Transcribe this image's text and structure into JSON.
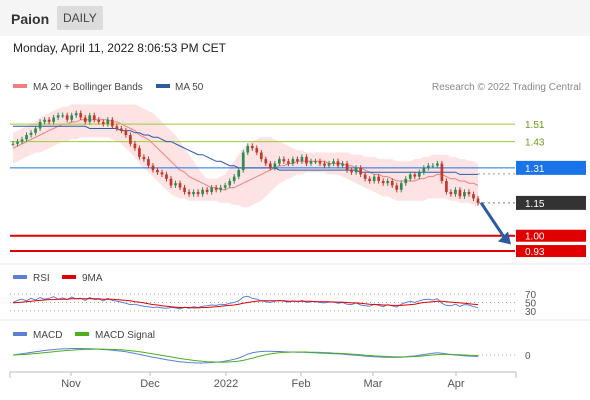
{
  "header": {
    "symbol": "Paion",
    "period": "DAILY",
    "datetime": "Monday, April 11, 2022 8:06:53 PM CET",
    "credit": "Research © 2022 Trading Central"
  },
  "colors": {
    "bollinger": "#f08080",
    "bollinger_fill": "#fde3e3",
    "ma50": "#2d5aa0",
    "up_candle": "#2e8b57",
    "down_candle": "#c0392b",
    "resistance": "#9acd32",
    "pivot": "#1a73e8",
    "support": "#e00000",
    "last_price": "#333333",
    "rsi": "#5b7fd6",
    "rsi_ma": "#e00000",
    "macd": "#5b7fd6",
    "macd_signal": "#4caf20",
    "arrow": "#2d5aa0"
  },
  "chart_data": [
    {
      "type": "candlestick",
      "legend": [
        {
          "name": "MA 20 + Bollinger Bands",
          "color": "#f08080"
        },
        {
          "name": "MA 50",
          "color": "#2d5aa0"
        }
      ],
      "legend_position": "top-left",
      "ylim": [
        0.88,
        1.62
      ],
      "x_ticks": [
        "Nov",
        "Dec",
        "2022",
        "Feb",
        "Mar",
        "Apr"
      ],
      "closes": [
        1.42,
        1.43,
        1.44,
        1.46,
        1.47,
        1.49,
        1.52,
        1.53,
        1.52,
        1.54,
        1.55,
        1.55,
        1.53,
        1.55,
        1.56,
        1.54,
        1.52,
        1.55,
        1.53,
        1.52,
        1.51,
        1.53,
        1.5,
        1.49,
        1.48,
        1.46,
        1.42,
        1.4,
        1.36,
        1.35,
        1.32,
        1.3,
        1.29,
        1.28,
        1.26,
        1.23,
        1.24,
        1.22,
        1.2,
        1.19,
        1.2,
        1.19,
        1.21,
        1.2,
        1.22,
        1.21,
        1.22,
        1.23,
        1.25,
        1.27,
        1.3,
        1.38,
        1.41,
        1.4,
        1.38,
        1.35,
        1.33,
        1.31,
        1.33,
        1.35,
        1.34,
        1.33,
        1.35,
        1.34,
        1.36,
        1.33,
        1.34,
        1.34,
        1.33,
        1.32,
        1.33,
        1.34,
        1.32,
        1.33,
        1.3,
        1.29,
        1.31,
        1.28,
        1.26,
        1.25,
        1.27,
        1.25,
        1.24,
        1.25,
        1.23,
        1.21,
        1.24,
        1.26,
        1.28,
        1.27,
        1.29,
        1.31,
        1.32,
        1.32,
        1.33,
        1.25,
        1.2,
        1.19,
        1.21,
        1.18,
        1.2,
        1.19,
        1.17,
        1.15
      ],
      "ma20": [
        1.4,
        1.41,
        1.42,
        1.43,
        1.44,
        1.45,
        1.46,
        1.47,
        1.48,
        1.49,
        1.5,
        1.51,
        1.51,
        1.52,
        1.52,
        1.53,
        1.53,
        1.53,
        1.53,
        1.53,
        1.53,
        1.53,
        1.52,
        1.52,
        1.51,
        1.5,
        1.49,
        1.48,
        1.46,
        1.45,
        1.44,
        1.42,
        1.4,
        1.38,
        1.36,
        1.34,
        1.32,
        1.3,
        1.29,
        1.27,
        1.26,
        1.25,
        1.24,
        1.23,
        1.22,
        1.22,
        1.21,
        1.21,
        1.22,
        1.22,
        1.23,
        1.24,
        1.25,
        1.26,
        1.27,
        1.28,
        1.29,
        1.3,
        1.31,
        1.32,
        1.32,
        1.33,
        1.33,
        1.34,
        1.34,
        1.34,
        1.34,
        1.34,
        1.34,
        1.34,
        1.33,
        1.33,
        1.33,
        1.33,
        1.32,
        1.32,
        1.31,
        1.31,
        1.3,
        1.29,
        1.28,
        1.28,
        1.27,
        1.27,
        1.26,
        1.25,
        1.25,
        1.25,
        1.25,
        1.25,
        1.26,
        1.26,
        1.27,
        1.27,
        1.28,
        1.28,
        1.27,
        1.26,
        1.26,
        1.25,
        1.25,
        1.24,
        1.24,
        1.23
      ],
      "bb_upper": [
        1.47,
        1.48,
        1.49,
        1.5,
        1.51,
        1.52,
        1.54,
        1.55,
        1.56,
        1.57,
        1.58,
        1.59,
        1.59,
        1.6,
        1.6,
        1.6,
        1.6,
        1.6,
        1.6,
        1.6,
        1.6,
        1.6,
        1.6,
        1.6,
        1.6,
        1.6,
        1.6,
        1.6,
        1.59,
        1.58,
        1.57,
        1.56,
        1.54,
        1.52,
        1.5,
        1.48,
        1.46,
        1.43,
        1.4,
        1.37,
        1.34,
        1.31,
        1.28,
        1.26,
        1.26,
        1.26,
        1.27,
        1.28,
        1.31,
        1.34,
        1.37,
        1.4,
        1.42,
        1.43,
        1.44,
        1.45,
        1.45,
        1.45,
        1.44,
        1.43,
        1.42,
        1.41,
        1.4,
        1.39,
        1.39,
        1.38,
        1.38,
        1.38,
        1.38,
        1.38,
        1.38,
        1.38,
        1.38,
        1.38,
        1.38,
        1.37,
        1.37,
        1.37,
        1.36,
        1.36,
        1.36,
        1.35,
        1.35,
        1.35,
        1.35,
        1.34,
        1.34,
        1.34,
        1.34,
        1.35,
        1.35,
        1.36,
        1.36,
        1.37,
        1.37,
        1.37,
        1.37,
        1.36,
        1.36,
        1.35,
        1.35,
        1.34,
        1.34,
        1.33
      ],
      "bb_lower": [
        1.33,
        1.34,
        1.35,
        1.36,
        1.37,
        1.38,
        1.38,
        1.39,
        1.4,
        1.41,
        1.42,
        1.43,
        1.43,
        1.44,
        1.44,
        1.45,
        1.45,
        1.45,
        1.45,
        1.45,
        1.45,
        1.45,
        1.44,
        1.43,
        1.42,
        1.4,
        1.38,
        1.36,
        1.33,
        1.31,
        1.29,
        1.27,
        1.25,
        1.23,
        1.21,
        1.19,
        1.18,
        1.17,
        1.17,
        1.16,
        1.16,
        1.16,
        1.16,
        1.16,
        1.16,
        1.16,
        1.15,
        1.15,
        1.15,
        1.14,
        1.14,
        1.13,
        1.13,
        1.14,
        1.15,
        1.16,
        1.18,
        1.2,
        1.22,
        1.24,
        1.25,
        1.26,
        1.27,
        1.28,
        1.28,
        1.29,
        1.29,
        1.29,
        1.29,
        1.29,
        1.28,
        1.28,
        1.28,
        1.27,
        1.26,
        1.25,
        1.24,
        1.23,
        1.22,
        1.21,
        1.2,
        1.19,
        1.18,
        1.18,
        1.17,
        1.16,
        1.16,
        1.16,
        1.16,
        1.16,
        1.16,
        1.16,
        1.17,
        1.17,
        1.17,
        1.17,
        1.17,
        1.16,
        1.16,
        1.15,
        1.15,
        1.15,
        1.14,
        1.13
      ],
      "ma50": [
        1.5,
        1.5,
        1.5,
        1.5,
        1.5,
        1.5,
        1.5,
        1.5,
        1.5,
        1.5,
        1.5,
        1.5,
        1.5,
        1.5,
        1.5,
        1.5,
        1.5,
        1.49,
        1.49,
        1.49,
        1.49,
        1.49,
        1.49,
        1.49,
        1.48,
        1.48,
        1.48,
        1.47,
        1.47,
        1.46,
        1.46,
        1.45,
        1.45,
        1.44,
        1.43,
        1.43,
        1.42,
        1.41,
        1.4,
        1.39,
        1.38,
        1.37,
        1.37,
        1.36,
        1.35,
        1.34,
        1.34,
        1.33,
        1.32,
        1.32,
        1.31,
        1.31,
        1.31,
        1.31,
        1.31,
        1.31,
        1.31,
        1.31,
        1.31,
        1.3,
        1.3,
        1.3,
        1.3,
        1.3,
        1.3,
        1.3,
        1.3,
        1.3,
        1.3,
        1.3,
        1.3,
        1.3,
        1.3,
        1.3,
        1.3,
        1.3,
        1.3,
        1.29,
        1.29,
        1.29,
        1.29,
        1.29,
        1.29,
        1.29,
        1.29,
        1.29,
        1.29,
        1.29,
        1.29,
        1.29,
        1.29,
        1.29,
        1.29,
        1.29,
        1.29,
        1.29,
        1.29,
        1.29,
        1.29,
        1.28,
        1.28,
        1.28,
        1.28,
        1.28
      ],
      "levels": [
        {
          "value": 1.51,
          "label": "1.51",
          "kind": "resistance"
        },
        {
          "value": 1.43,
          "label": "1.43",
          "kind": "resistance"
        },
        {
          "value": 1.31,
          "label": "1.31",
          "kind": "pivot"
        },
        {
          "value": 1.0,
          "label": "1.00",
          "kind": "support"
        },
        {
          "value": 0.93,
          "label": "0.93",
          "kind": "support"
        }
      ],
      "last_price": {
        "value": 1.15,
        "label": "1.15"
      },
      "forecast_arrow": {
        "from": 1.16,
        "to": 0.96,
        "direction": "down"
      }
    },
    {
      "type": "line",
      "panel": "RSI",
      "legend": [
        {
          "name": "RSI",
          "color": "#5b7fd6"
        },
        {
          "name": "9MA",
          "color": "#e00000"
        }
      ],
      "ylim": [
        20,
        80
      ],
      "reference_levels": [
        70,
        50,
        30
      ],
      "rsi": [
        50,
        55,
        58,
        54,
        60,
        56,
        62,
        58,
        60,
        64,
        58,
        61,
        57,
        63,
        59,
        60,
        55,
        62,
        57,
        58,
        54,
        60,
        55,
        53,
        51,
        48,
        45,
        46,
        43,
        41,
        40,
        38,
        39,
        37,
        36,
        38,
        37,
        35,
        39,
        36,
        40,
        38,
        41,
        42,
        44,
        43,
        46,
        45,
        48,
        50,
        54,
        63,
        65,
        60,
        58,
        54,
        52,
        50,
        53,
        55,
        53,
        51,
        54,
        52,
        55,
        50,
        52,
        53,
        50,
        49,
        51,
        52,
        48,
        50,
        46,
        45,
        49,
        44,
        42,
        41,
        46,
        43,
        40,
        45,
        42,
        39,
        46,
        50,
        53,
        50,
        54,
        57,
        58,
        56,
        59,
        48,
        43,
        42,
        46,
        41,
        45,
        44,
        40,
        38
      ],
      "rsi_9ma": [
        49,
        50,
        51,
        52,
        53,
        54,
        55,
        56,
        57,
        57,
        58,
        58,
        58,
        59,
        59,
        59,
        59,
        59,
        59,
        59,
        58,
        58,
        58,
        57,
        56,
        55,
        54,
        52,
        51,
        49,
        47,
        45,
        44,
        42,
        41,
        40,
        39,
        38,
        38,
        38,
        37,
        37,
        38,
        38,
        39,
        40,
        41,
        42,
        43,
        44,
        46,
        48,
        50,
        52,
        53,
        54,
        54,
        54,
        54,
        54,
        54,
        53,
        53,
        53,
        53,
        53,
        53,
        52,
        52,
        52,
        52,
        51,
        51,
        51,
        50,
        49,
        49,
        48,
        47,
        46,
        45,
        45,
        44,
        44,
        43,
        43,
        43,
        44,
        45,
        46,
        48,
        50,
        51,
        52,
        53,
        53,
        52,
        51,
        50,
        49,
        48,
        47,
        46,
        45
      ]
    },
    {
      "type": "line",
      "panel": "MACD",
      "legend": [
        {
          "name": "MACD",
          "color": "#5b7fd6"
        },
        {
          "name": "MACD Signal",
          "color": "#4caf20"
        }
      ],
      "ylim": [
        -0.06,
        0.06
      ],
      "reference_levels": [
        0
      ],
      "macd": [
        0.0,
        0.003,
        0.006,
        0.009,
        0.012,
        0.015,
        0.018,
        0.021,
        0.023,
        0.025,
        0.027,
        0.028,
        0.029,
        0.03,
        0.03,
        0.03,
        0.029,
        0.029,
        0.028,
        0.027,
        0.025,
        0.024,
        0.022,
        0.02,
        0.018,
        0.015,
        0.011,
        0.007,
        0.003,
        -0.002,
        -0.006,
        -0.01,
        -0.014,
        -0.018,
        -0.022,
        -0.025,
        -0.028,
        -0.031,
        -0.033,
        -0.035,
        -0.036,
        -0.037,
        -0.037,
        -0.036,
        -0.035,
        -0.033,
        -0.031,
        -0.028,
        -0.024,
        -0.02,
        -0.014,
        -0.006,
        0.004,
        0.01,
        0.014,
        0.016,
        0.017,
        0.017,
        0.016,
        0.016,
        0.015,
        0.014,
        0.014,
        0.013,
        0.013,
        0.012,
        0.011,
        0.01,
        0.009,
        0.008,
        0.007,
        0.006,
        0.005,
        0.004,
        0.002,
        0.0,
        -0.001,
        -0.003,
        -0.005,
        -0.007,
        -0.008,
        -0.009,
        -0.01,
        -0.01,
        -0.011,
        -0.011,
        -0.01,
        -0.008,
        -0.006,
        -0.004,
        -0.001,
        0.002,
        0.005,
        0.008,
        0.01,
        0.008,
        0.005,
        0.002,
        0.0,
        -0.002,
        -0.004,
        -0.005,
        -0.006,
        -0.007
      ],
      "macd_signal": [
        0.0,
        0.001,
        0.002,
        0.003,
        0.005,
        0.007,
        0.009,
        0.011,
        0.013,
        0.015,
        0.017,
        0.019,
        0.021,
        0.022,
        0.024,
        0.025,
        0.026,
        0.026,
        0.027,
        0.027,
        0.027,
        0.026,
        0.026,
        0.025,
        0.024,
        0.022,
        0.02,
        0.018,
        0.015,
        0.012,
        0.009,
        0.005,
        0.002,
        -0.002,
        -0.005,
        -0.009,
        -0.012,
        -0.016,
        -0.019,
        -0.022,
        -0.025,
        -0.027,
        -0.029,
        -0.031,
        -0.032,
        -0.033,
        -0.033,
        -0.033,
        -0.032,
        -0.03,
        -0.028,
        -0.025,
        -0.02,
        -0.015,
        -0.009,
        -0.004,
        0.001,
        0.005,
        0.008,
        0.01,
        0.012,
        0.013,
        0.014,
        0.014,
        0.014,
        0.014,
        0.013,
        0.013,
        0.012,
        0.011,
        0.01,
        0.009,
        0.008,
        0.007,
        0.006,
        0.004,
        0.003,
        0.001,
        -0.001,
        -0.002,
        -0.004,
        -0.005,
        -0.006,
        -0.007,
        -0.008,
        -0.009,
        -0.009,
        -0.009,
        -0.008,
        -0.007,
        -0.006,
        -0.004,
        -0.002,
        0.0,
        0.002,
        0.003,
        0.003,
        0.003,
        0.002,
        0.001,
        0.0,
        -0.001,
        -0.002,
        -0.003
      ]
    }
  ]
}
